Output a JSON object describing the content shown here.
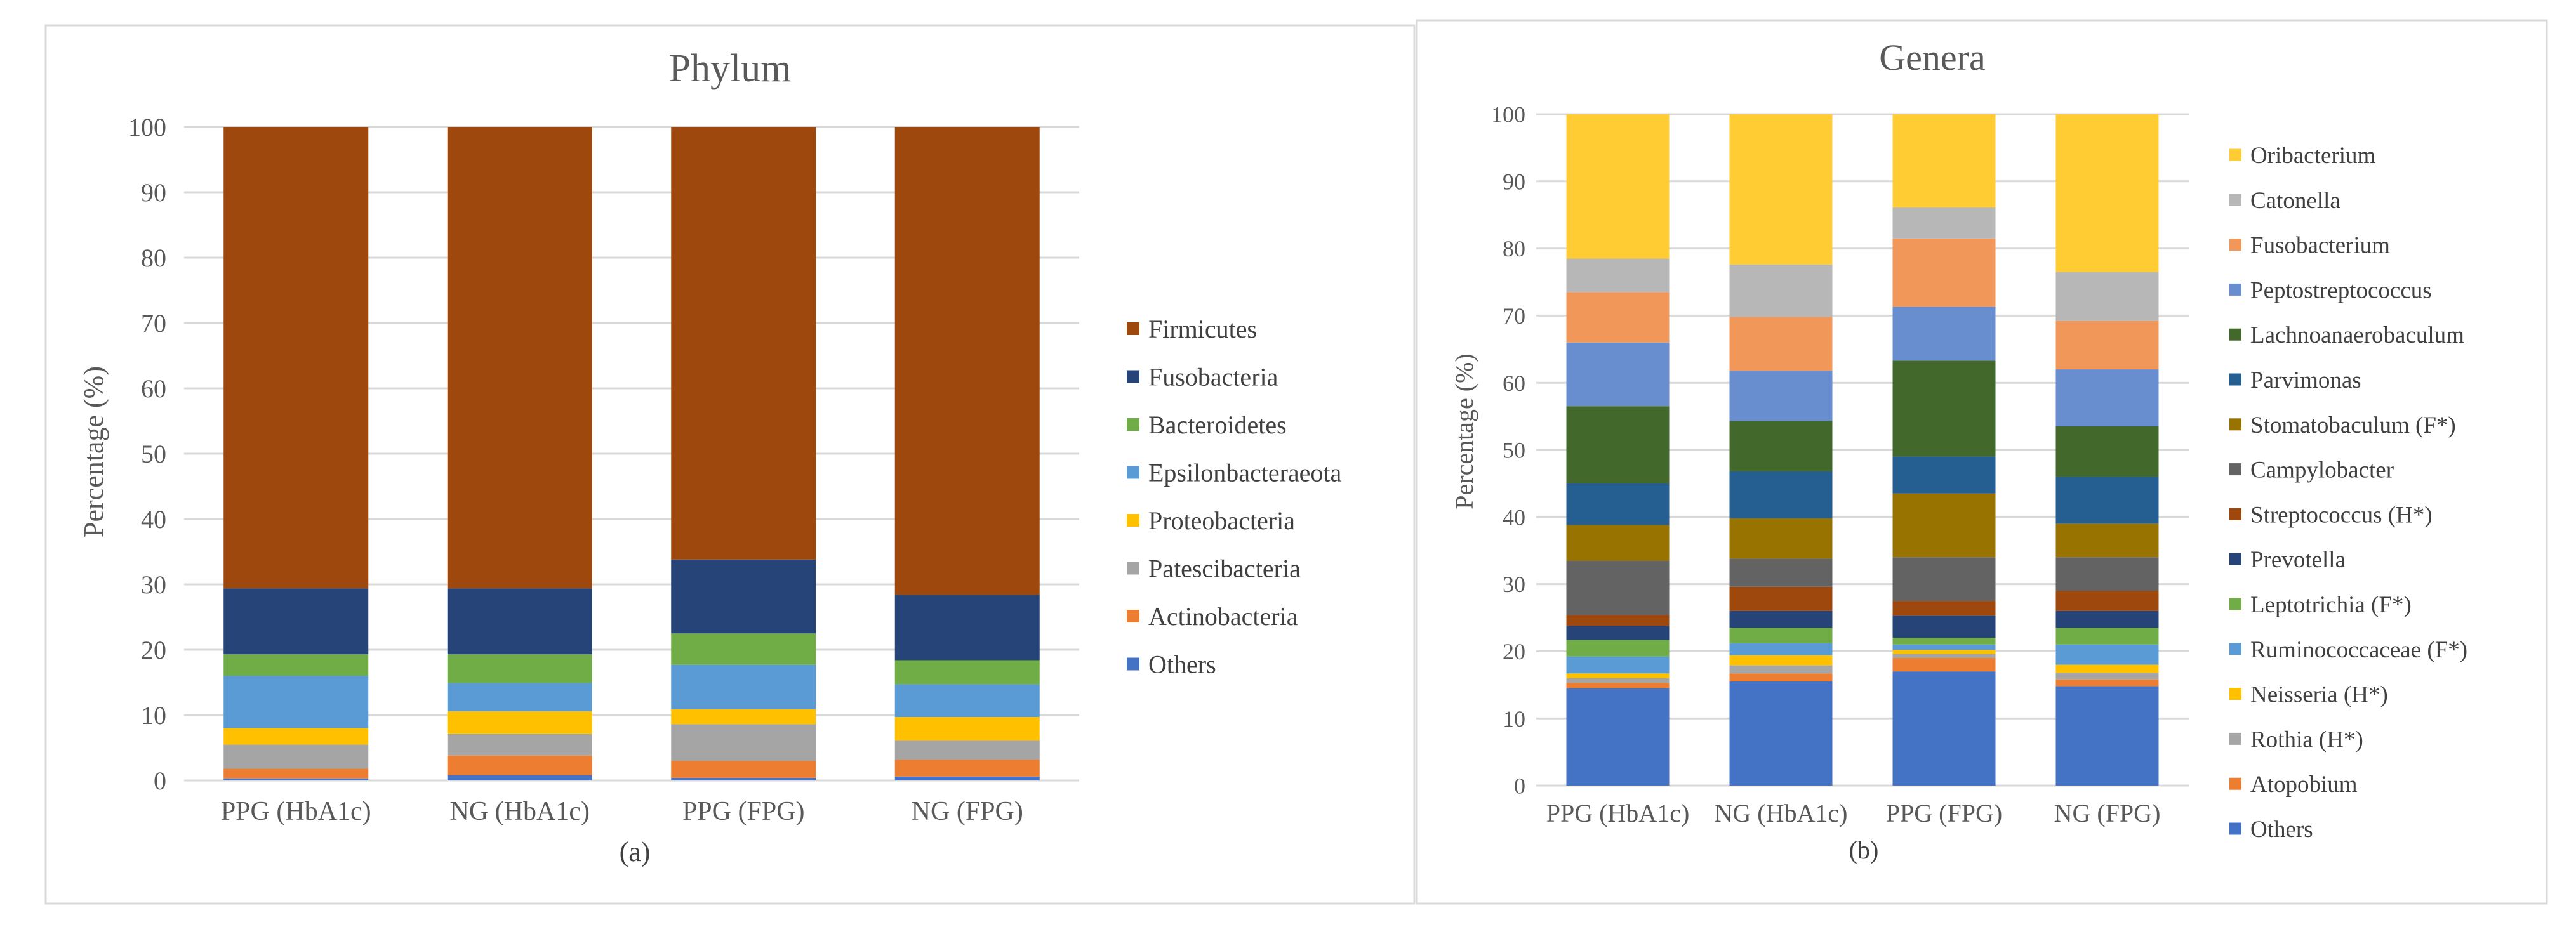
{
  "chart_data": [
    {
      "type": "bar",
      "stacked": true,
      "title": "Phylum",
      "ylabel": "Percentage (%)",
      "xlabel": "(a)",
      "ylim": [
        0,
        100
      ],
      "yticks": [
        0,
        10,
        20,
        30,
        40,
        50,
        60,
        70,
        80,
        90,
        100
      ],
      "grid": true,
      "legend_position": "right",
      "categories": [
        "PPG (HbA1c)",
        "NG (HbA1c)",
        "PPG (FPG)",
        "NG (FPG)"
      ],
      "series": [
        {
          "name": "Others",
          "color": "#4472C4",
          "values": [
            0.3,
            0.8,
            0.4,
            0.6
          ]
        },
        {
          "name": "Actinobacteria",
          "color": "#ED7D31",
          "values": [
            1.5,
            3.0,
            2.6,
            2.6
          ]
        },
        {
          "name": "Patescibacteria",
          "color": "#A5A5A5",
          "values": [
            3.7,
            3.3,
            5.6,
            2.9
          ]
        },
        {
          "name": "Proteobacteria",
          "color": "#FFC000",
          "values": [
            2.5,
            3.5,
            2.3,
            3.6
          ]
        },
        {
          "name": "Epsilonbacteraeota",
          "color": "#5B9BD5",
          "values": [
            8.0,
            4.3,
            6.8,
            5.0
          ]
        },
        {
          "name": "Bacteroidetes",
          "color": "#70AD47",
          "values": [
            3.3,
            4.4,
            4.8,
            3.7
          ]
        },
        {
          "name": "Fusobacteria",
          "color": "#264478",
          "values": [
            10.1,
            10.1,
            11.3,
            10.0
          ]
        },
        {
          "name": "Firmicutes",
          "color": "#9E480E",
          "values": [
            70.6,
            70.6,
            66.2,
            71.6
          ]
        }
      ]
    },
    {
      "type": "bar",
      "stacked": true,
      "title": "Genera",
      "ylabel": "Percentage (%)",
      "xlabel": "(b)",
      "ylim": [
        0,
        100
      ],
      "yticks": [
        0,
        10,
        20,
        30,
        40,
        50,
        60,
        70,
        80,
        90,
        100
      ],
      "grid": true,
      "legend_position": "right",
      "categories": [
        "PPG (HbA1c)",
        "NG (HbA1c)",
        "PPG (FPG)",
        "NG (FPG)"
      ],
      "series": [
        {
          "name": "Others",
          "color": "#4472C4",
          "values": [
            14.5,
            15.5,
            17.0,
            14.8
          ]
        },
        {
          "name": "Atopobium",
          "color": "#ED7D31",
          "values": [
            0.8,
            1.2,
            2.0,
            1.0
          ]
        },
        {
          "name": "Rothia (H*)",
          "color": "#A5A5A5",
          "values": [
            0.7,
            1.2,
            0.6,
            1.0
          ]
        },
        {
          "name": "Neisseria (H*)",
          "color": "#FFC000",
          "values": [
            0.7,
            1.5,
            0.6,
            1.2
          ]
        },
        {
          "name": "Ruminococcaceae (F*)",
          "color": "#5B9BD5",
          "values": [
            2.5,
            1.8,
            0.8,
            3.0
          ]
        },
        {
          "name": "Leptotrichia (F*)",
          "color": "#70AD47",
          "values": [
            2.5,
            2.3,
            1.0,
            2.5
          ]
        },
        {
          "name": "Prevotella",
          "color": "#264478",
          "values": [
            2.1,
            2.5,
            3.3,
            2.5
          ]
        },
        {
          "name": "Streptococcus (H*)",
          "color": "#9E480E",
          "values": [
            1.6,
            3.6,
            2.2,
            3.0
          ]
        },
        {
          "name": "Campylobacter",
          "color": "#636363",
          "values": [
            8.1,
            4.2,
            6.5,
            5.0
          ]
        },
        {
          "name": "Stomatobaculum (F*)",
          "color": "#997300",
          "values": [
            5.3,
            6.0,
            9.5,
            5.0
          ]
        },
        {
          "name": "Parvimonas",
          "color": "#255E91",
          "values": [
            6.2,
            7.0,
            5.5,
            7.0
          ]
        },
        {
          "name": "Lachnoanaerobaculum",
          "color": "#43682B",
          "values": [
            11.5,
            7.5,
            14.3,
            7.5
          ]
        },
        {
          "name": "Peptostreptococcus",
          "color": "#698ED0",
          "values": [
            9.5,
            7.5,
            8.0,
            8.5
          ]
        },
        {
          "name": "Fusobacterium",
          "color": "#F1975A",
          "values": [
            7.5,
            8.0,
            10.2,
            7.2
          ]
        },
        {
          "name": "Catonella",
          "color": "#B7B7B7",
          "values": [
            5.0,
            7.8,
            4.6,
            7.3
          ]
        },
        {
          "name": "Oribacterium",
          "color": "#FFCD33",
          "values": [
            21.5,
            22.4,
            13.9,
            23.5
          ]
        }
      ]
    }
  ]
}
